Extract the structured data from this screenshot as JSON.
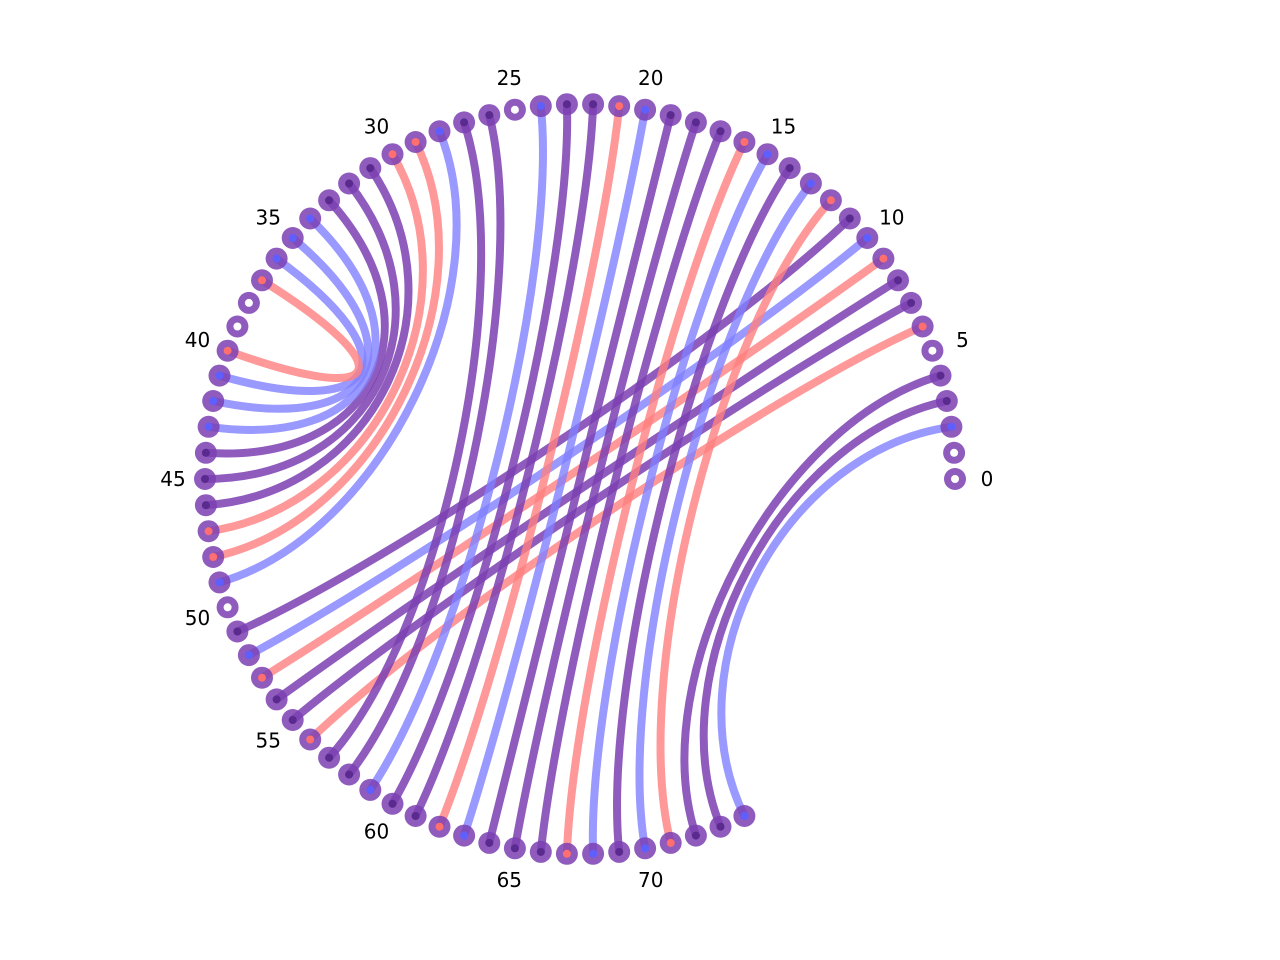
{
  "diagram": {
    "type": "chord",
    "node_count": 75,
    "colors": {
      "node_ring": "#7b3fb3",
      "node_center": "#ffffff",
      "red_link": "#ff7f7f",
      "blue_link": "#7f7fff",
      "purple_link": "#7b3fb3",
      "red_dot": "#ff6f6f",
      "blue_dot": "#5f5fff",
      "purple_dot": "#5a2a8f"
    },
    "tick_labels": [
      {
        "node": 0,
        "text": "0"
      },
      {
        "node": 5,
        "text": "5"
      },
      {
        "node": 10,
        "text": "10"
      },
      {
        "node": 15,
        "text": "15"
      },
      {
        "node": 20,
        "text": "20"
      },
      {
        "node": 25,
        "text": "25"
      },
      {
        "node": 30,
        "text": "30"
      },
      {
        "node": 35,
        "text": "35"
      },
      {
        "node": 40,
        "text": "40"
      },
      {
        "node": 45,
        "text": "45"
      },
      {
        "node": 50,
        "text": "50"
      },
      {
        "node": 55,
        "text": "55"
      },
      {
        "node": 60,
        "text": "60"
      },
      {
        "node": 65,
        "text": "65"
      },
      {
        "node": 70,
        "text": "70"
      }
    ],
    "links": [
      {
        "from": 2,
        "to": 74,
        "color": "blue"
      },
      {
        "from": 3,
        "to": 73,
        "color": "purple"
      },
      {
        "from": 4,
        "to": 72,
        "color": "purple"
      },
      {
        "from": 6,
        "to": 56,
        "color": "red"
      },
      {
        "from": 7,
        "to": 55,
        "color": "purple"
      },
      {
        "from": 8,
        "to": 54,
        "color": "purple"
      },
      {
        "from": 9,
        "to": 53,
        "color": "red"
      },
      {
        "from": 10,
        "to": 52,
        "color": "blue"
      },
      {
        "from": 11,
        "to": 51,
        "color": "purple"
      },
      {
        "from": 12,
        "to": 71,
        "color": "red"
      },
      {
        "from": 13,
        "to": 70,
        "color": "blue"
      },
      {
        "from": 14,
        "to": 69,
        "color": "purple"
      },
      {
        "from": 15,
        "to": 68,
        "color": "blue"
      },
      {
        "from": 16,
        "to": 67,
        "color": "red"
      },
      {
        "from": 17,
        "to": 66,
        "color": "purple"
      },
      {
        "from": 18,
        "to": 65,
        "color": "purple"
      },
      {
        "from": 19,
        "to": 64,
        "color": "purple"
      },
      {
        "from": 20,
        "to": 63,
        "color": "blue"
      },
      {
        "from": 21,
        "to": 62,
        "color": "red"
      },
      {
        "from": 22,
        "to": 61,
        "color": "purple"
      },
      {
        "from": 23,
        "to": 60,
        "color": "purple"
      },
      {
        "from": 24,
        "to": 59,
        "color": "blue"
      },
      {
        "from": 26,
        "to": 58,
        "color": "purple"
      },
      {
        "from": 27,
        "to": 57,
        "color": "purple"
      },
      {
        "from": 28,
        "to": 49,
        "color": "blue"
      },
      {
        "from": 29,
        "to": 48,
        "color": "red"
      },
      {
        "from": 30,
        "to": 47,
        "color": "red"
      },
      {
        "from": 31,
        "to": 46,
        "color": "purple"
      },
      {
        "from": 32,
        "to": 45,
        "color": "purple"
      },
      {
        "from": 33,
        "to": 44,
        "color": "purple"
      },
      {
        "from": 34,
        "to": 43,
        "color": "blue"
      },
      {
        "from": 35,
        "to": 42,
        "color": "blue"
      },
      {
        "from": 36,
        "to": 41,
        "color": "blue"
      },
      {
        "from": 37,
        "to": 40,
        "color": "red"
      }
    ]
  }
}
